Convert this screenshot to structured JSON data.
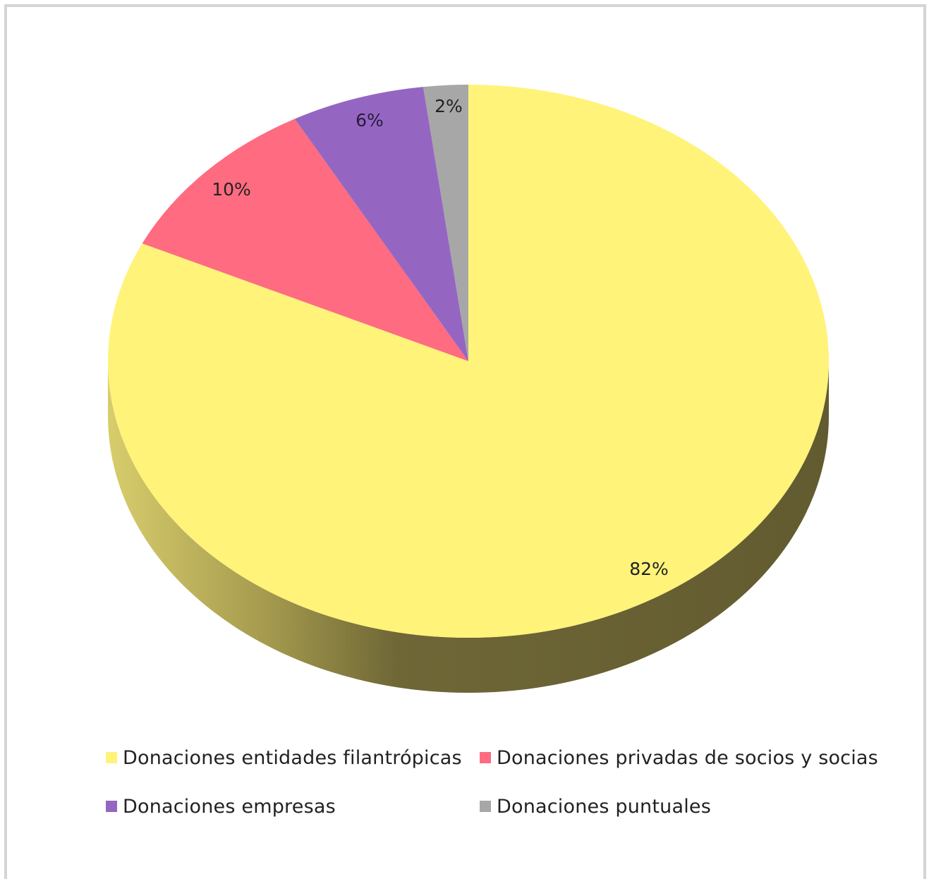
{
  "chart_data": {
    "type": "pie",
    "title": "",
    "series": [
      {
        "values": [
          82,
          10,
          6,
          2
        ],
        "labels": [
          "82%",
          "10%",
          "6%",
          "2%"
        ]
      }
    ],
    "categories": [
      "Donaciones entidades filantrópicas",
      "Donaciones privadas de socios y socias",
      "Donaciones empresas",
      "Donaciones puntuales"
    ],
    "colors": [
      "#fff37a",
      "#ff6b80",
      "#9466c2",
      "#a7a7a7"
    ],
    "side_colors": [
      "#6b6433",
      "#7a3540",
      "#4a3361",
      "#555555"
    ],
    "style": "3d-pie",
    "legend_position": "bottom"
  },
  "legend": {
    "items": [
      {
        "label": "Donaciones entidades filantrópicas",
        "color": "#fff37a"
      },
      {
        "label": "Donaciones privadas de socios y socias",
        "color": "#ff6b80"
      },
      {
        "label": "Donaciones empresas",
        "color": "#9466c2"
      },
      {
        "label": "Donaciones puntuales",
        "color": "#a7a7a7"
      }
    ]
  }
}
